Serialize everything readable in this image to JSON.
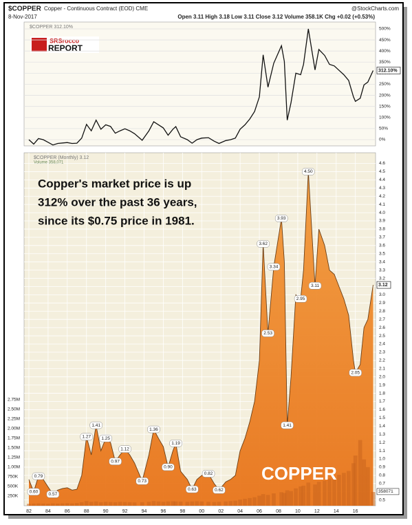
{
  "header": {
    "symbol": "$COPPER",
    "description": "Copper - Continuous Contract (EOD) CME",
    "source": "@StockCharts.com",
    "date": "8-Nov-2017",
    "quote": "Open 3.11 High 3.18 Low 3.11 Close 3.12 Volume 358.1K Chg +0.02 (+0.53%)"
  },
  "logo": [
    "SRSrocco",
    "REPORT"
  ],
  "chart_data": [
    {
      "type": "line",
      "xlim": [
        1981.5,
        2018.1
      ],
      "ylim": [
        -28,
        531
      ],
      "yticks": [
        {
          "value": 0,
          "label": "0%"
        },
        {
          "value": 50,
          "label": "50%"
        },
        {
          "value": 100,
          "label": "100%"
        },
        {
          "value": 150,
          "label": "150%"
        },
        {
          "value": 200,
          "label": "200%"
        },
        {
          "value": 250,
          "label": "250%"
        },
        {
          "value": 300,
          "label": "300%"
        },
        {
          "value": 350,
          "label": "350%"
        },
        {
          "value": 400,
          "label": "400%"
        },
        {
          "value": 450,
          "label": "450%"
        },
        {
          "value": 500,
          "label": "500%"
        }
      ],
      "grid": true,
      "x": [
        1982.0,
        1982.5,
        1983.0,
        1983.5,
        1984.0,
        1984.5,
        1985.0,
        1985.5,
        1986.0,
        1986.5,
        1987.0,
        1987.5,
        1988.0,
        1988.5,
        1989.0,
        1989.5,
        1990.0,
        1990.5,
        1991.0,
        1991.5,
        1992.0,
        1992.5,
        1993.0,
        1993.8,
        1994.5,
        1995.0,
        1995.5,
        1996.0,
        1996.5,
        1997.0,
        1997.3,
        1997.8,
        1998.5,
        1999.0,
        1999.5,
        2000.0,
        2000.7,
        2001.3,
        2001.8,
        2002.5,
        2003.0,
        2003.5,
        2004.0,
        2004.5,
        2005.0,
        2005.5,
        2006.0,
        2006.4,
        2006.9,
        2007.5,
        2008.3,
        2008.6,
        2008.9,
        2009.3,
        2009.8,
        2010.3,
        2010.6,
        2011.1,
        2011.8,
        2012.2,
        2012.8,
        2013.3,
        2013.8,
        2014.3,
        2014.8,
        2015.3,
        2015.8,
        2016.0,
        2016.5,
        2016.9,
        2017.3,
        2017.85
      ],
      "series": [
        {
          "name": "$COPPER 312.10%",
          "color": "#111111",
          "values": [
            0,
            -20,
            5,
            0,
            -12,
            -24,
            -17,
            -15,
            -13,
            -17,
            -16,
            7,
            69,
            40,
            88,
            47,
            67,
            60,
            29,
            40,
            49,
            40,
            27,
            -3,
            40,
            81,
            67,
            53,
            20,
            47,
            59,
            13,
            0,
            -16,
            0,
            7,
            9,
            -7,
            -17,
            -4,
            0,
            7,
            47,
            67,
            93,
            127,
            193,
            383,
            237,
            345,
            424,
            353,
            88,
            167,
            300,
            293,
            340,
            500,
            315,
            407,
            380,
            340,
            333,
            313,
            293,
            267,
            193,
            173,
            187,
            247,
            260,
            312.1
          ]
        }
      ],
      "last_value_label": "312.10%"
    },
    {
      "type": "area",
      "xlim": [
        1981.5,
        2018.1
      ],
      "ylim": [
        0.43,
        4.73
      ],
      "xticks": [
        {
          "value": 1982,
          "label": "82"
        },
        {
          "value": 1984,
          "label": "84"
        },
        {
          "value": 1986,
          "label": "86"
        },
        {
          "value": 1988,
          "label": "88"
        },
        {
          "value": 1990,
          "label": "90"
        },
        {
          "value": 1992,
          "label": "92"
        },
        {
          "value": 1994,
          "label": "94"
        },
        {
          "value": 1996,
          "label": "96"
        },
        {
          "value": 1998,
          "label": "98"
        },
        {
          "value": 2000,
          "label": "00"
        },
        {
          "value": 2002,
          "label": "02"
        },
        {
          "value": 2004,
          "label": "04"
        },
        {
          "value": 2006,
          "label": "06"
        },
        {
          "value": 2008,
          "label": "08"
        },
        {
          "value": 2010,
          "label": "10"
        },
        {
          "value": 2012,
          "label": "12"
        },
        {
          "value": 2014,
          "label": "14"
        },
        {
          "value": 2016,
          "label": "16"
        }
      ],
      "yticks": [
        0.5,
        0.6,
        0.7,
        0.8,
        0.9,
        {
          "value": 1,
          "label": "1.0"
        },
        1.1,
        1.2,
        1.3,
        1.4,
        1.5,
        1.6,
        1.7,
        1.8,
        1.9,
        {
          "value": 2,
          "label": "2.0"
        },
        2.1,
        2.2,
        2.3,
        2.4,
        2.5,
        2.6,
        2.7,
        2.8,
        2.9,
        {
          "value": 3,
          "label": "3.0"
        },
        3.1,
        3.2,
        3.3,
        3.4,
        3.5,
        3.6,
        3.7,
        3.8,
        3.9,
        {
          "value": 4,
          "label": "4.0"
        },
        4.1,
        4.2,
        4.3,
        4.4,
        4.5,
        4.6
      ],
      "y2lim": [
        0,
        9140000
      ],
      "y2ticks": [
        {
          "value": 250000,
          "label": "250K"
        },
        {
          "value": 500000,
          "label": "500K"
        },
        {
          "value": 750000,
          "label": "750K"
        },
        {
          "value": 1000000,
          "label": "1.00M"
        },
        {
          "value": 1250000,
          "label": "1.25M"
        },
        {
          "value": 1500000,
          "label": "1.50M"
        },
        {
          "value": 1750000,
          "label": "1.75M"
        },
        {
          "value": 2000000,
          "label": "2.00M"
        },
        {
          "value": 2250000,
          "label": "2.25M"
        },
        {
          "value": 2500000,
          "label": "2.50M"
        },
        {
          "value": 2750000,
          "label": "2.75M"
        }
      ],
      "grid": true,
      "x": [
        1982.0,
        1982.5,
        1983.0,
        1983.5,
        1984.0,
        1984.5,
        1985.0,
        1985.5,
        1986.0,
        1986.5,
        1987.0,
        1987.5,
        1988.0,
        1988.5,
        1989.0,
        1989.5,
        1990.0,
        1990.5,
        1991.0,
        1991.5,
        1992.0,
        1992.5,
        1993.0,
        1993.8,
        1994.5,
        1995.0,
        1995.5,
        1996.0,
        1996.5,
        1997.0,
        1997.3,
        1997.8,
        1998.5,
        1999.0,
        1999.5,
        2000.0,
        2000.7,
        2001.3,
        2001.8,
        2002.5,
        2003.0,
        2003.5,
        2004.0,
        2004.5,
        2005.0,
        2005.5,
        2006.0,
        2006.4,
        2006.9,
        2007.5,
        2008.3,
        2008.6,
        2008.9,
        2009.3,
        2009.8,
        2010.3,
        2010.6,
        2011.1,
        2011.8,
        2012.2,
        2012.8,
        2013.3,
        2013.8,
        2014.3,
        2014.8,
        2015.3,
        2015.8,
        2016.0,
        2016.5,
        2016.9,
        2017.3,
        2017.85
      ],
      "series": [
        {
          "name": "$COPPER (Monthly) 3.12",
          "color": "#f08a24",
          "values": [
            0.75,
            0.6,
            0.79,
            0.75,
            0.66,
            0.57,
            0.62,
            0.64,
            0.65,
            0.62,
            0.63,
            0.8,
            1.27,
            1.05,
            1.41,
            1.1,
            1.25,
            1.2,
            0.97,
            1.05,
            1.12,
            1.05,
            0.95,
            0.73,
            1.05,
            1.36,
            1.25,
            1.15,
            0.9,
            1.1,
            1.19,
            0.85,
            0.75,
            0.63,
            0.75,
            0.8,
            0.82,
            0.7,
            0.62,
            0.72,
            0.75,
            0.8,
            1.1,
            1.25,
            1.45,
            1.7,
            2.2,
            3.62,
            2.53,
            3.34,
            3.93,
            3.4,
            1.41,
            2.0,
            3.0,
            2.95,
            3.3,
            4.5,
            3.11,
            3.8,
            3.6,
            3.3,
            3.25,
            3.1,
            2.95,
            2.75,
            2.2,
            2.05,
            2.15,
            2.6,
            2.7,
            3.12
          ]
        },
        {
          "name": "Volume 358,071",
          "color": "#c8641e",
          "axis": "y2",
          "values": [
            50000,
            55000,
            60000,
            55000,
            50000,
            60000,
            55000,
            60000,
            65000,
            60000,
            70000,
            90000,
            120000,
            100000,
            110000,
            90000,
            100000,
            95000,
            90000,
            100000,
            95000,
            90000,
            85000,
            90000,
            100000,
            120000,
            110000,
            100000,
            110000,
            115000,
            110000,
            105000,
            100000,
            110000,
            115000,
            110000,
            100000,
            95000,
            100000,
            110000,
            120000,
            130000,
            160000,
            180000,
            200000,
            220000,
            260000,
            300000,
            280000,
            320000,
            350000,
            330000,
            400000,
            380000,
            450000,
            500000,
            520000,
            600000,
            550000,
            620000,
            650000,
            700000,
            720000,
            800000,
            850000,
            900000,
            1100000,
            1300000,
            1700000,
            1200000,
            1000000,
            358071
          ],
          "last_value_label": "358071"
        }
      ],
      "annotations": [
        {
          "x": 1982.5,
          "y": 0.6,
          "label": "0.60"
        },
        {
          "x": 1983.0,
          "y": 0.79,
          "label": "0.79"
        },
        {
          "x": 1984.5,
          "y": 0.57,
          "label": "0.57"
        },
        {
          "x": 1988.0,
          "y": 1.27,
          "label": "1.27"
        },
        {
          "x": 1989.0,
          "y": 1.41,
          "label": "1.41"
        },
        {
          "x": 1990.0,
          "y": 1.25,
          "label": "1.25"
        },
        {
          "x": 1991.0,
          "y": 0.97,
          "label": "0.97"
        },
        {
          "x": 1992.0,
          "y": 1.12,
          "label": "1.12"
        },
        {
          "x": 1993.8,
          "y": 0.73,
          "label": "0.73"
        },
        {
          "x": 1995.0,
          "y": 1.36,
          "label": "1.36"
        },
        {
          "x": 1996.5,
          "y": 0.9,
          "label": "0.90"
        },
        {
          "x": 1997.3,
          "y": 1.19,
          "label": "1.19"
        },
        {
          "x": 1999.0,
          "y": 0.63,
          "label": "0.63"
        },
        {
          "x": 2000.7,
          "y": 0.82,
          "label": "0.82"
        },
        {
          "x": 2001.8,
          "y": 0.62,
          "label": "0.62"
        },
        {
          "x": 2006.4,
          "y": 3.62,
          "label": "3.62"
        },
        {
          "x": 2006.9,
          "y": 2.53,
          "label": "2.53"
        },
        {
          "x": 2007.5,
          "y": 3.34,
          "label": "3.34"
        },
        {
          "x": 2008.3,
          "y": 3.93,
          "label": "3.93"
        },
        {
          "x": 2008.9,
          "y": 1.41,
          "label": "1.41"
        },
        {
          "x": 2010.3,
          "y": 2.95,
          "label": "2.95"
        },
        {
          "x": 2011.1,
          "y": 4.5,
          "label": "4.50"
        },
        {
          "x": 2011.8,
          "y": 3.11,
          "label": "3.11"
        },
        {
          "x": 2016.0,
          "y": 2.05,
          "label": "2.05"
        }
      ],
      "text_box": [
        "Copper's market price is up",
        "312% over the past 36 years,",
        "since its $0.75 price in 1981."
      ],
      "watermark": "COPPER"
    }
  ]
}
